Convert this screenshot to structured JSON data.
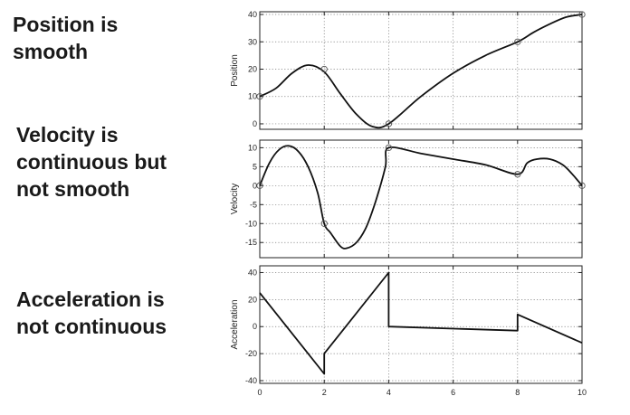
{
  "captions": {
    "position": [
      "Position is",
      "smooth"
    ],
    "velocity": [
      "Velocity is",
      "continuous but",
      "not smooth"
    ],
    "acceleration": [
      "Acceleration is",
      "not continuous"
    ]
  },
  "chart_data": [
    {
      "type": "line",
      "title": "",
      "xlabel": "",
      "ylabel": "Position",
      "xlim": [
        0,
        10
      ],
      "ylim": [
        -2,
        41
      ],
      "yticks": [
        0,
        10,
        20,
        30,
        40
      ],
      "xticks": [
        0,
        2,
        4,
        6,
        8,
        10
      ],
      "show_xtick_labels": false,
      "grid": true,
      "series": [
        {
          "x": [
            0,
            0.5,
            1,
            1.5,
            2,
            2.5,
            3,
            3.5,
            4,
            5,
            6,
            7,
            8,
            8.5,
            9,
            9.5,
            10
          ],
          "y": [
            10,
            13,
            18.5,
            21.5,
            19,
            11,
            3.5,
            -1,
            0,
            10,
            18.5,
            25,
            30,
            33.5,
            36.5,
            39,
            40
          ]
        }
      ],
      "markers": {
        "x": [
          0,
          2,
          4,
          8,
          10
        ],
        "y": [
          10,
          20,
          0,
          30,
          40
        ]
      }
    },
    {
      "type": "line",
      "title": "",
      "xlabel": "",
      "ylabel": "Velocity",
      "xlim": [
        0,
        10
      ],
      "ylim": [
        -19,
        12
      ],
      "yticks": [
        -15,
        -10,
        -5,
        0,
        5,
        10
      ],
      "xticks": [
        0,
        2,
        4,
        6,
        8,
        10
      ],
      "show_xtick_labels": false,
      "grid": true,
      "series": [
        {
          "x": [
            0,
            0.3,
            0.6,
            0.9,
            1.2,
            1.5,
            1.8,
            2,
            2.2,
            2.5,
            2.7,
            3,
            3.3,
            3.6,
            3.9,
            4,
            5,
            6,
            7,
            8,
            8.3,
            8.6,
            9,
            9.4,
            9.7,
            10
          ],
          "y": [
            0,
            6,
            9.5,
            10.5,
            9,
            5,
            -2,
            -10,
            -12.5,
            -16,
            -16.5,
            -15,
            -11,
            -4,
            5,
            10,
            8.5,
            7,
            5.5,
            3,
            6,
            7,
            7,
            5.5,
            3,
            0
          ]
        }
      ],
      "markers": {
        "x": [
          0,
          2,
          4,
          8,
          10
        ],
        "y": [
          0,
          -10,
          10,
          3,
          0
        ]
      }
    },
    {
      "type": "line",
      "title": "",
      "xlabel": "",
      "ylabel": "Acceleration",
      "xlim": [
        0,
        10
      ],
      "ylim": [
        -42,
        45
      ],
      "yticks": [
        -40,
        -20,
        0,
        20,
        40
      ],
      "xticks": [
        0,
        2,
        4,
        6,
        8,
        10
      ],
      "show_xtick_labels": true,
      "grid": true,
      "series": [
        {
          "x": [
            0,
            2,
            2,
            4,
            4,
            8,
            8,
            10
          ],
          "y": [
            25,
            -35,
            -20,
            40,
            0,
            -3,
            9,
            -12
          ]
        }
      ],
      "markers": {
        "x": [],
        "y": []
      }
    }
  ]
}
